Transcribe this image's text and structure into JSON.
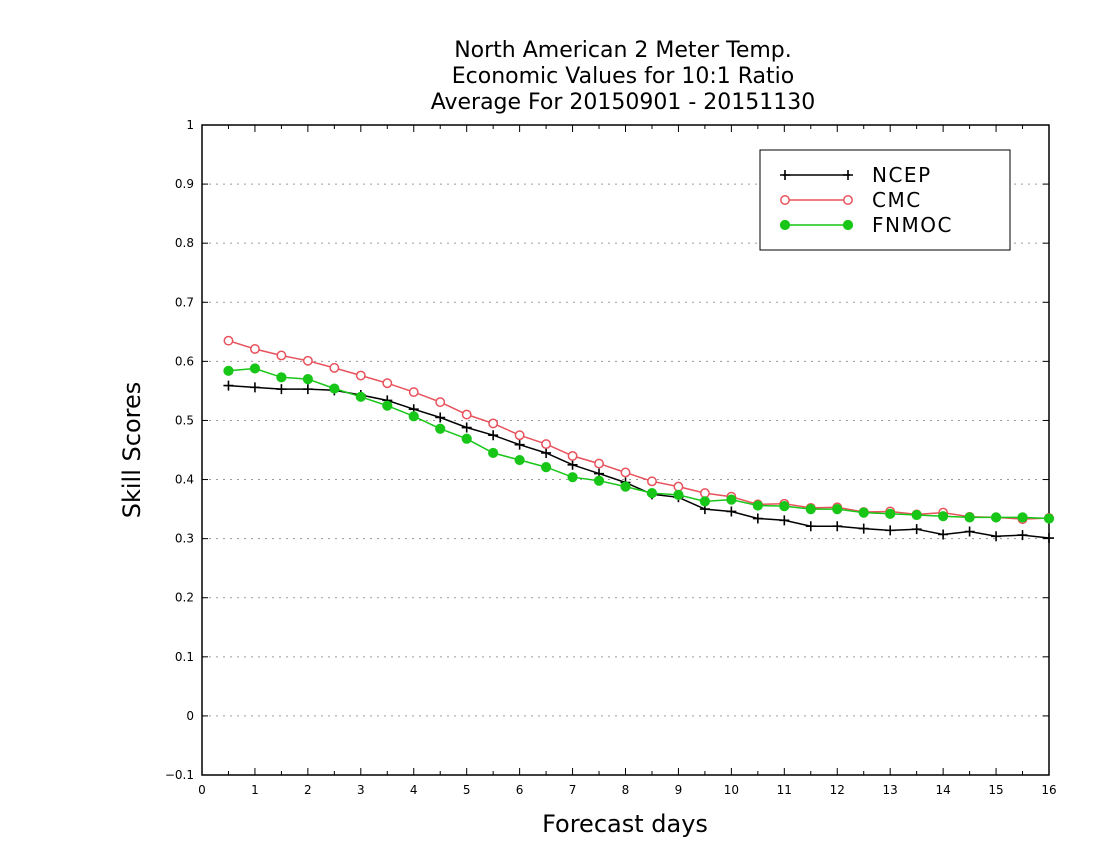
{
  "chart_data": {
    "type": "line",
    "title_lines": [
      "North American 2 Meter Temp.",
      "Economic Values for 10:1 Ratio",
      "Average For 20150901 - 20151130"
    ],
    "xlabel": "Forecast days",
    "ylabel": "Skill Scores",
    "xlim": [
      0,
      16
    ],
    "ylim": [
      -0.1,
      1
    ],
    "x_ticks": [
      "0",
      "1",
      "2",
      "3",
      "4",
      "5",
      "6",
      "7",
      "8",
      "9",
      "10",
      "11",
      "12",
      "13",
      "14",
      "15",
      "16"
    ],
    "y_ticks": [
      "−0.1",
      "0",
      "0.1",
      "0.2",
      "0.3",
      "0.4",
      "0.5",
      "0.6",
      "0.7",
      "0.8",
      "0.9",
      "1"
    ],
    "grid": "horizontal dotted",
    "legend_position": "top-right",
    "x": [
      0.5,
      1,
      1.5,
      2,
      2.5,
      3,
      3.5,
      4,
      4.5,
      5,
      5.5,
      6,
      6.5,
      7,
      7.5,
      8,
      8.5,
      9,
      9.5,
      10,
      10.5,
      11,
      11.5,
      12,
      12.5,
      13,
      13.5,
      14,
      14.5,
      15,
      15.5,
      16
    ],
    "series": [
      {
        "name": "NCEP",
        "color": "#000000",
        "marker": "plus",
        "values": [
          0.559,
          0.556,
          0.553,
          0.553,
          0.551,
          0.543,
          0.534,
          0.519,
          0.505,
          0.488,
          0.475,
          0.459,
          0.445,
          0.425,
          0.41,
          0.395,
          0.375,
          0.37,
          0.35,
          0.346,
          0.334,
          0.331,
          0.321,
          0.321,
          0.317,
          0.314,
          0.316,
          0.307,
          0.312,
          0.304,
          0.306,
          0.301
        ]
      },
      {
        "name": "CMC",
        "color": "#e8525c",
        "marker": "open-circle",
        "values": [
          0.635,
          0.621,
          0.61,
          0.601,
          0.589,
          0.576,
          0.563,
          0.548,
          0.531,
          0.51,
          0.495,
          0.475,
          0.46,
          0.44,
          0.427,
          0.412,
          0.397,
          0.388,
          0.377,
          0.371,
          0.358,
          0.359,
          0.352,
          0.353,
          0.345,
          0.346,
          0.341,
          0.344,
          0.337,
          0.336,
          0.333,
          0.335
        ]
      },
      {
        "name": "FNMOC",
        "color": "#17c617",
        "marker": "filled-circle",
        "values": [
          0.584,
          0.588,
          0.573,
          0.57,
          0.554,
          0.54,
          0.525,
          0.507,
          0.486,
          0.469,
          0.445,
          0.433,
          0.421,
          0.404,
          0.398,
          0.388,
          0.377,
          0.374,
          0.363,
          0.366,
          0.356,
          0.355,
          0.35,
          0.35,
          0.344,
          0.342,
          0.34,
          0.338,
          0.336,
          0.336,
          0.336,
          0.334
        ]
      }
    ]
  }
}
